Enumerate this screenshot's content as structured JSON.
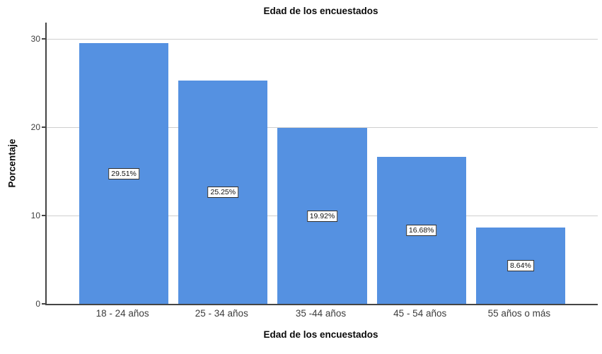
{
  "figure": {
    "title": "Edad de los encuestados",
    "x_axis_title": "Edad de los encuestados",
    "y_axis_title": "Porcentaje"
  },
  "chart_data": {
    "type": "bar",
    "title": "Edad de los encuestados",
    "xlabel": "Edad de los encuestados",
    "ylabel": "Porcentaje",
    "categories": [
      "18 - 24 años",
      "25 - 34 años",
      "35 -44 años",
      "45 - 54 años",
      "55 años o más"
    ],
    "values": [
      29.51,
      25.25,
      19.92,
      16.68,
      8.64
    ],
    "bar_labels": [
      "29.51%",
      "25.25%",
      "19.92%",
      "16.68%",
      "8.64%"
    ],
    "y_ticks": [
      0,
      10,
      20,
      30
    ],
    "ylim": [
      0,
      31.8
    ],
    "grid": "horizontal-gridlines-on",
    "legend": "none",
    "bar_color": "#5591E1",
    "gridline_color": "#cfcfcf",
    "axis_line_color": "#454545"
  }
}
